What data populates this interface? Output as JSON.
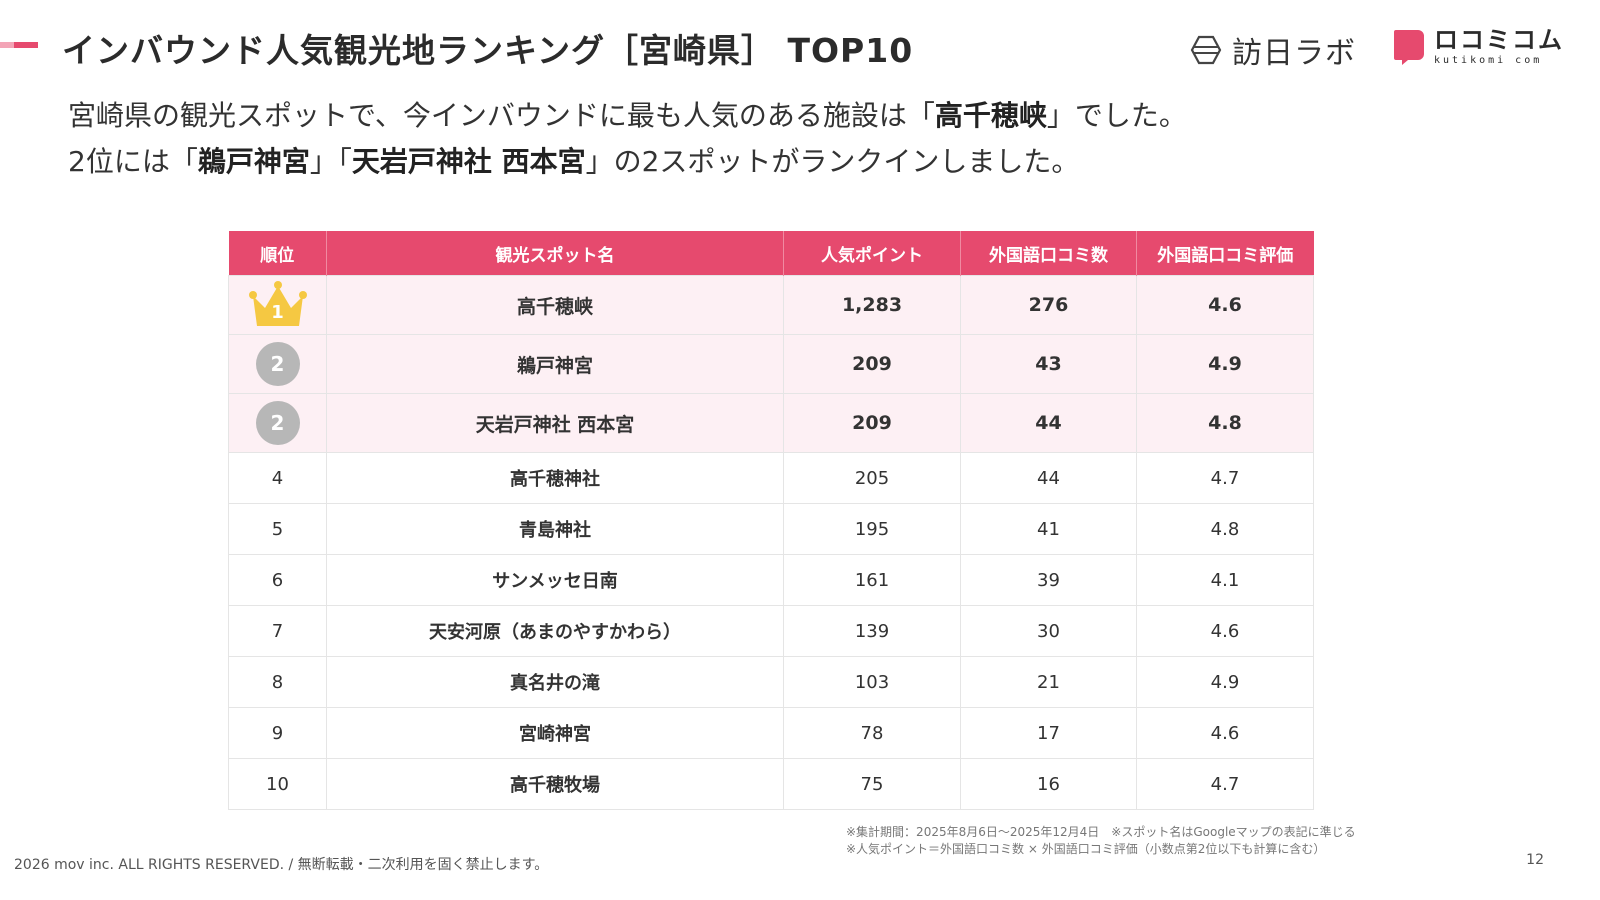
{
  "header": {
    "title": "インバウンド人気観光地ランキング［宮崎県］ TOP10",
    "logo1_text": "訪日ラボ",
    "logo2_text": "ロコミコム",
    "logo2_sub": "kutikomi com"
  },
  "lead": {
    "line1_pre": "宮崎県の観光スポットで、今インバウンドに最も人気のある施設は「",
    "line1_bold": "高千穂峡",
    "line1_post": "」でした。",
    "line2_pre": "2位には「",
    "line2_bold1": "鵜戸神宮",
    "line2_mid": "」「",
    "line2_bold2": "天岩戸神社 西本宮",
    "line2_post": "」の2スポットがランクインしました。"
  },
  "table": {
    "headers": [
      "順位",
      "観光スポット名",
      "人気ポイント",
      "外国語口コミ数",
      "外国語口コミ評価"
    ],
    "rows": [
      {
        "rank": "1",
        "name": "高千穂峡",
        "points": "1,283",
        "reviews": "276",
        "rating": "4.6"
      },
      {
        "rank": "2",
        "name": "鵜戸神宮",
        "points": "209",
        "reviews": "43",
        "rating": "4.9"
      },
      {
        "rank": "2",
        "name": "天岩戸神社 西本宮",
        "points": "209",
        "reviews": "44",
        "rating": "4.8"
      },
      {
        "rank": "4",
        "name": "高千穂神社",
        "points": "205",
        "reviews": "44",
        "rating": "4.7"
      },
      {
        "rank": "5",
        "name": "青島神社",
        "points": "195",
        "reviews": "41",
        "rating": "4.8"
      },
      {
        "rank": "6",
        "name": "サンメッセ日南",
        "points": "161",
        "reviews": "39",
        "rating": "4.1"
      },
      {
        "rank": "7",
        "name": "天安河原（あまのやすかわら）",
        "points": "139",
        "reviews": "30",
        "rating": "4.6"
      },
      {
        "rank": "8",
        "name": "真名井の滝",
        "points": "103",
        "reviews": "21",
        "rating": "4.9"
      },
      {
        "rank": "9",
        "name": "宮崎神宮",
        "points": "78",
        "reviews": "17",
        "rating": "4.6"
      },
      {
        "rank": "10",
        "name": "高千穂牧場",
        "points": "75",
        "reviews": "16",
        "rating": "4.7"
      }
    ]
  },
  "notes": {
    "line1": "※集計期間：2025年8月6日〜2025年12月4日　※スポット名はGoogleマップの表記に準じる",
    "line2": "※人気ポイント＝外国語口コミ数 × 外国語口コミ評価（小数点第2位以下も計算に含む）"
  },
  "footer": {
    "copyright": "2026 mov inc. ALL RIGHTS RESERVED. / 無断転載・二次利用を固く禁止します。",
    "page": "12"
  },
  "colors": {
    "accent": "#e64a6e",
    "top_row_bg": "#fdf0f4",
    "crown": "#f5c842",
    "rank_circle": "#b7b7b7"
  },
  "icons": {
    "logo1": "hexagon-logo-icon",
    "logo2": "speech-bubble-logo-icon",
    "rank1": "crown-icon"
  }
}
